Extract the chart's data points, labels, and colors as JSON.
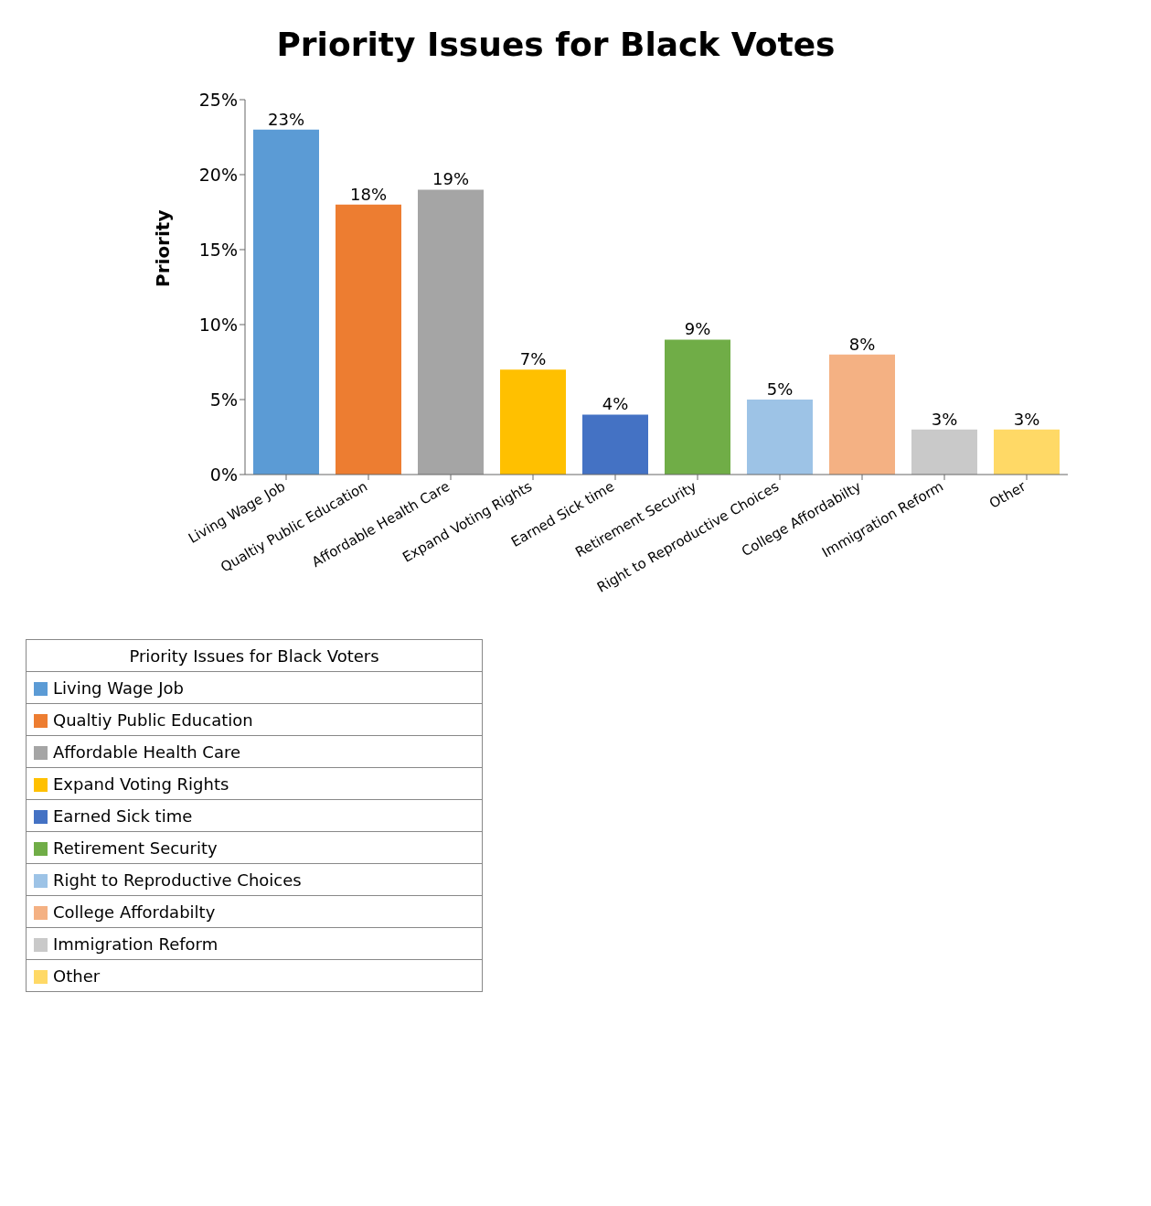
{
  "chart_data": {
    "type": "bar",
    "title": "Priority Issues for Black Votes",
    "ylabel": "Priority",
    "categories": [
      "Living Wage Job",
      "Qualtiy Public Education",
      "Affordable Health Care",
      "Expand Voting Rights",
      "Earned Sick time",
      "Retirement Security",
      "Right to Reproductive Choices",
      "College Affordabilty",
      "Immigration Reform",
      "Other"
    ],
    "series": [
      {
        "name": "Priority Issues for Black Voters",
        "values": [
          23,
          18,
          19,
          7,
          4,
          9,
          5,
          8,
          3,
          3
        ],
        "colors": [
          "#5b9bd5",
          "#ed7d31",
          "#a5a5a5",
          "#ffc000",
          "#4472c4",
          "#70ad47",
          "#9dc3e6",
          "#f4b183",
          "#c9c9c9",
          "#ffd966"
        ],
        "value_labels": [
          "23%",
          "18%",
          "19%",
          "7%",
          "4%",
          "9%",
          "5%",
          "8%",
          "3%",
          "3%"
        ]
      }
    ],
    "ylim": [
      0,
      25
    ],
    "yticks": [
      {
        "value": 0,
        "label": "0%"
      },
      {
        "value": 5,
        "label": "5%"
      },
      {
        "value": 10,
        "label": "10%"
      },
      {
        "value": 15,
        "label": "15%"
      },
      {
        "value": 20,
        "label": "20%"
      },
      {
        "value": 25,
        "label": "25%"
      }
    ],
    "grid": false,
    "legend": "bottom"
  }
}
